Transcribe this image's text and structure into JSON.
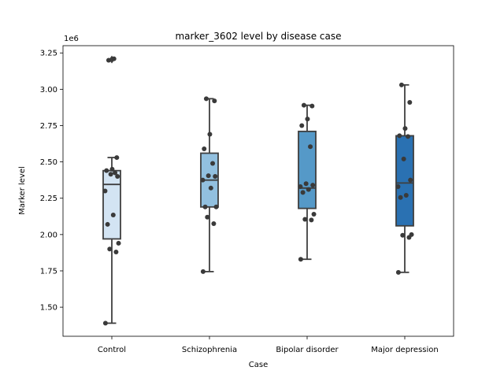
{
  "chart_data": {
    "type": "boxplot",
    "title": "marker_3602 level by disease case",
    "xlabel": "Case",
    "ylabel": "Marker level",
    "y_offset_label": "1e6",
    "y_scale": 1000000,
    "ylim": [
      1300000,
      3300000
    ],
    "y_ticks": [
      1500000,
      1750000,
      2000000,
      2250000,
      2500000,
      2750000,
      3000000,
      3250000
    ],
    "y_tick_labels": [
      "1.50",
      "1.75",
      "2.00",
      "2.25",
      "2.50",
      "2.75",
      "3.00",
      "3.25"
    ],
    "grid": false,
    "categories": [
      "Control",
      "Schizophrenia",
      "Bipolar disorder",
      "Major depression"
    ],
    "series": [
      {
        "category": "Control",
        "color": "#d3e4f3",
        "box": {
          "whisker_low": 1390000,
          "q1": 1970000,
          "median": 2345000,
          "q3": 2440000,
          "whisker_high": 2530000
        },
        "outliers": [
          3200000,
          3210000
        ],
        "points": [
          1390000,
          1880000,
          1900000,
          1940000,
          2070000,
          2135000,
          2300000,
          2400000,
          2415000,
          2425000,
          2440000,
          2450000,
          2530000,
          3200000,
          3210000
        ]
      },
      {
        "category": "Schizophrenia",
        "color": "#92c0df",
        "box": {
          "whisker_low": 1745000,
          "q1": 2190000,
          "median": 2375000,
          "q3": 2560000,
          "whisker_high": 2935000
        },
        "outliers": [],
        "points": [
          1745000,
          2075000,
          2120000,
          2190000,
          2190000,
          2320000,
          2375000,
          2400000,
          2405000,
          2490000,
          2590000,
          2690000,
          2920000,
          2935000
        ]
      },
      {
        "category": "Bipolar disorder",
        "color": "#5599c8",
        "box": {
          "whisker_low": 1830000,
          "q1": 2180000,
          "median": 2320000,
          "q3": 2710000,
          "whisker_high": 2890000
        },
        "outliers": [],
        "points": [
          1830000,
          2100000,
          2105000,
          2140000,
          2290000,
          2310000,
          2330000,
          2340000,
          2350000,
          2605000,
          2750000,
          2795000,
          2885000,
          2890000
        ]
      },
      {
        "category": "Major depression",
        "color": "#2a71b2",
        "box": {
          "whisker_low": 1740000,
          "q1": 2060000,
          "median": 2355000,
          "q3": 2680000,
          "whisker_high": 3030000
        },
        "outliers": [],
        "points": [
          1740000,
          1980000,
          1995000,
          2000000,
          2255000,
          2270000,
          2330000,
          2375000,
          2520000,
          2675000,
          2680000,
          2730000,
          2910000,
          3030000
        ]
      }
    ]
  }
}
